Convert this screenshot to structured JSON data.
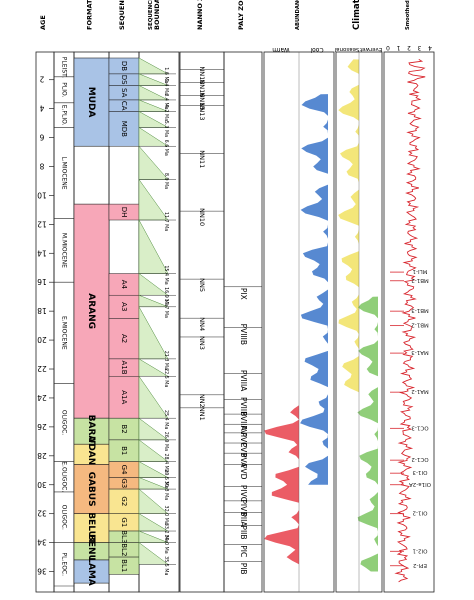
{
  "age_axis": {
    "label": "AGE",
    "ticks": [
      "2",
      "4",
      "6",
      "8",
      "10",
      "12",
      "14",
      "16",
      "18",
      "20",
      "22",
      "24",
      "26",
      "28",
      "30",
      "32",
      "34",
      "36"
    ]
  },
  "epochs": [
    "PLEIST.",
    "PLIO.",
    "E.PLIO.",
    "L.MIOCENE",
    "M.MIOCENE",
    "E.MIOCENE",
    "OLIGOC.",
    "E.OLIGOC.",
    "OLIGOC.",
    "PL.EOC."
  ],
  "formations": {
    "header": "FORMATION",
    "names": [
      "MUDA",
      "ARANG",
      "BARAT",
      "UDANG",
      "GABUS",
      "BELUT",
      "BENUA",
      "LAMA"
    ]
  },
  "sequences": {
    "header": "SEQUENCE",
    "names": [
      "DB",
      "DS",
      "SA",
      "CA",
      "MDB",
      "DH",
      "A4",
      "A3",
      "A2",
      "A1B",
      "A1A",
      "B2",
      "B1",
      "G4",
      "G3",
      "G2",
      "G1",
      "BL3",
      "BL2",
      "BL1"
    ]
  },
  "boundary_ages": {
    "header": "BOUNDARY AGES",
    "subheader": "SEQUENCE",
    "values": [
      "1.6 Ma",
      "2.4 Ma",
      "3.4 Ma",
      "4.2 Ma",
      "5.3 Ma",
      "6.6 Ma",
      "8.9 Ma",
      "11.7 Ma",
      "15.4 Ma",
      "16.9 Ma",
      "17.7 Ma",
      "21.3 Ma",
      "22.5 Ma",
      "25.4 Ma",
      "26.9 Ma",
      "28.4 Ma",
      "29.5 Ma",
      "30.3 Ma",
      "32.0 Ma",
      "33.2 Ma",
      "34.0 Ma",
      "35.5 Ma"
    ]
  },
  "nanno_zone": {
    "header": "NANNO ZONE",
    "zones": [
      "NN18",
      "NN16",
      "NN15",
      "NN13",
      "NN11",
      "NN10",
      "NN5",
      "NN4",
      "NN3",
      "NN2",
      "NN1"
    ]
  },
  "palyno_zone": {
    "header": "PALY ZONE",
    "zones": [
      "PIX",
      "PVIIIB",
      "PVIIIA",
      "PVIIB",
      "PVIIA",
      "PVI",
      "PVC",
      "PVB",
      "PVA",
      "PVD",
      "PIVC",
      "PIVB",
      "PIIA",
      "PIIB",
      "PIC",
      "PIB"
    ]
  },
  "abundance": {
    "header": "ABUNDANCE SUCCESSION (BOREAL) MAJOR PLANKTIC FORAM (SPP)",
    "warm_label": "Warm",
    "cool_label": "Cool",
    "warm_color": "#e8404a",
    "cool_color": "#3a74c9"
  },
  "climate": {
    "header": "Climate Trends",
    "seasonal_label": "Seasonal",
    "everwet_label": "Everwet",
    "seasonal_color": "#f2e36a",
    "everwet_color": "#84c96a"
  },
  "isotope": {
    "header": "Smoothed composite oxygen isotope record",
    "color": "#d8262e",
    "axis_ticks": [
      "4",
      "3",
      "2",
      "1",
      "0"
    ],
    "events": [
      "EPI-2",
      "OI2-1",
      "OI1-2",
      "OI1a-2A",
      "OI1-3",
      "OC1-2",
      "OC1-3",
      "MA1-2",
      "MA1-3",
      "MB1-2",
      "MB1-3",
      "MB1-2",
      "MLI-1"
    ]
  },
  "colors": {
    "muda": "#a9c3e6",
    "arang": "#f7a7b8",
    "barat": "#c7e3a3",
    "udang": "#f9e591",
    "gabus": "#f5b980",
    "belut": "#f9e591",
    "benua": "#c7e3a3",
    "lama": "#a9c3e6",
    "shade": "#d9eec8"
  }
}
